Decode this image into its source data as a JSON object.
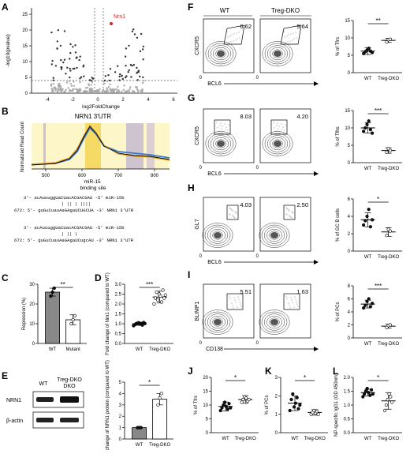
{
  "panel_letters": {
    "A": "A",
    "B": "B",
    "C": "C",
    "D": "D",
    "E": "E",
    "F": "F",
    "G": "G",
    "H": "H",
    "I": "I",
    "J": "J",
    "K": "K",
    "L": "L"
  },
  "colors": {
    "accent_red": "#d62728",
    "gray": "#888888",
    "blue": "#3a78c9",
    "orange": "#e8a020",
    "purple": "#8e6fb3"
  },
  "panelA": {
    "ylabel": "-log10(pvalue)",
    "xlabel": "log2FoldChange",
    "yticks": [
      "0",
      "5",
      "10",
      "15",
      "20",
      "25"
    ],
    "xticks": [
      "-4",
      "-2",
      "0",
      "2",
      "4",
      "6"
    ],
    "highlight": "Nrn1"
  },
  "panelB": {
    "title": "NRN1 3'UTR",
    "ylabel": "Normalized Read Count",
    "xticks": [
      "500",
      "600",
      "700",
      "800"
    ],
    "annotation": "miR-15 binding site",
    "seq1_mir": "3'- acAuuuggUaCUacACGACGAU -5'  miR-15b",
    "seq1_utr": "672: 5'- guGuCuauAaGAgaUCUGCUA -3'  NRN1 3'UTR",
    "seq2_mir": "3'- acAuuuggUaCUacACGACGAU -5'  miR-15b",
    "seq2_utr": "672: 5'- guGuCuauAaGAgaUCugcAU -3'  NRN1 3'UTR"
  },
  "panelC": {
    "ylabel": "Repression (%)",
    "categories": [
      "WT",
      "Mutant"
    ],
    "values": [
      26,
      12
    ],
    "yticks": [
      "0",
      "10",
      "20",
      "30"
    ],
    "sig": "**"
  },
  "panelD": {
    "ylabel": "Fold change of Nrn1 (compared to WT)",
    "categories": [
      "WT",
      "Treg-DKO"
    ],
    "values": [
      1.0,
      2.35
    ],
    "yticks": [
      "0.0",
      "0.5",
      "1.0",
      "1.5",
      "2.0",
      "2.5",
      "3.0"
    ],
    "sig": "***"
  },
  "panelE": {
    "header_wt": "WT",
    "header_dko": "Treg-DKO",
    "band1": "NRN1",
    "band2": "β-actin",
    "ylabel": "Fold change of NRN1 protein (compared to WT)",
    "categories": [
      "WT",
      "Treg-DKO"
    ],
    "values": [
      1.0,
      3.5
    ],
    "yticks": [
      "0",
      "1",
      "2",
      "3",
      "4",
      "5"
    ],
    "sig": "*"
  },
  "flow": {
    "col_wt": "WT",
    "col_dko": "Treg-DKO",
    "rows": [
      {
        "ylab": "CXCR5",
        "xlab": "BCL6",
        "wt": "6.62",
        "dko": "9.64",
        "bar_ylabel": "% of Tfrs",
        "yticks": [
          "0",
          "5",
          "10",
          "15"
        ],
        "sig": "**",
        "cat": [
          "WT",
          "Treg-DKO"
        ]
      },
      {
        "ylab": "CXCR5",
        "xlab": "BCL6",
        "wt": "8.03",
        "dko": "4.20",
        "bar_ylabel": "% of Tfhs",
        "yticks": [
          "0",
          "5",
          "10",
          "15"
        ],
        "sig": "***",
        "cat": [
          "WT",
          "Treg-DKO"
        ]
      },
      {
        "ylab": "GL7",
        "xlab": "BCL6",
        "wt": "4.03",
        "dko": "2.50",
        "bar_ylabel": "% of GC B cells",
        "yticks": [
          "0",
          "2",
          "4",
          "6"
        ],
        "sig": "*",
        "cat": [
          "WT",
          "Treg-DKO"
        ]
      },
      {
        "ylab": "BLIMP1",
        "xlab": "CD138",
        "wt": "5.51",
        "dko": "1.63",
        "bar_ylabel": "% of PCs",
        "yticks": [
          "0",
          "2",
          "4",
          "6",
          "8"
        ],
        "sig": "***",
        "cat": [
          "WT",
          "Treg-DKO"
        ]
      }
    ]
  },
  "panelJ": {
    "ylabel": "% of Tfrs",
    "categories": [
      "WT",
      "Treg-DKO"
    ],
    "yticks": [
      "0",
      "5",
      "10",
      "15",
      "20"
    ],
    "sig": "*"
  },
  "panelK": {
    "ylabel": "% of PCs",
    "categories": [
      "WT",
      "Treg-DKO"
    ],
    "yticks": [
      "0",
      "1",
      "2",
      "3"
    ],
    "sig": "*"
  },
  "panelL": {
    "ylabel": "NP-specific IgG1 (OD 450nm)",
    "categories": [
      "WT",
      "Treg-DKO"
    ],
    "yticks": [
      "0.0",
      "0.5",
      "1.0",
      "1.5",
      "2.0"
    ],
    "sig": "*"
  }
}
